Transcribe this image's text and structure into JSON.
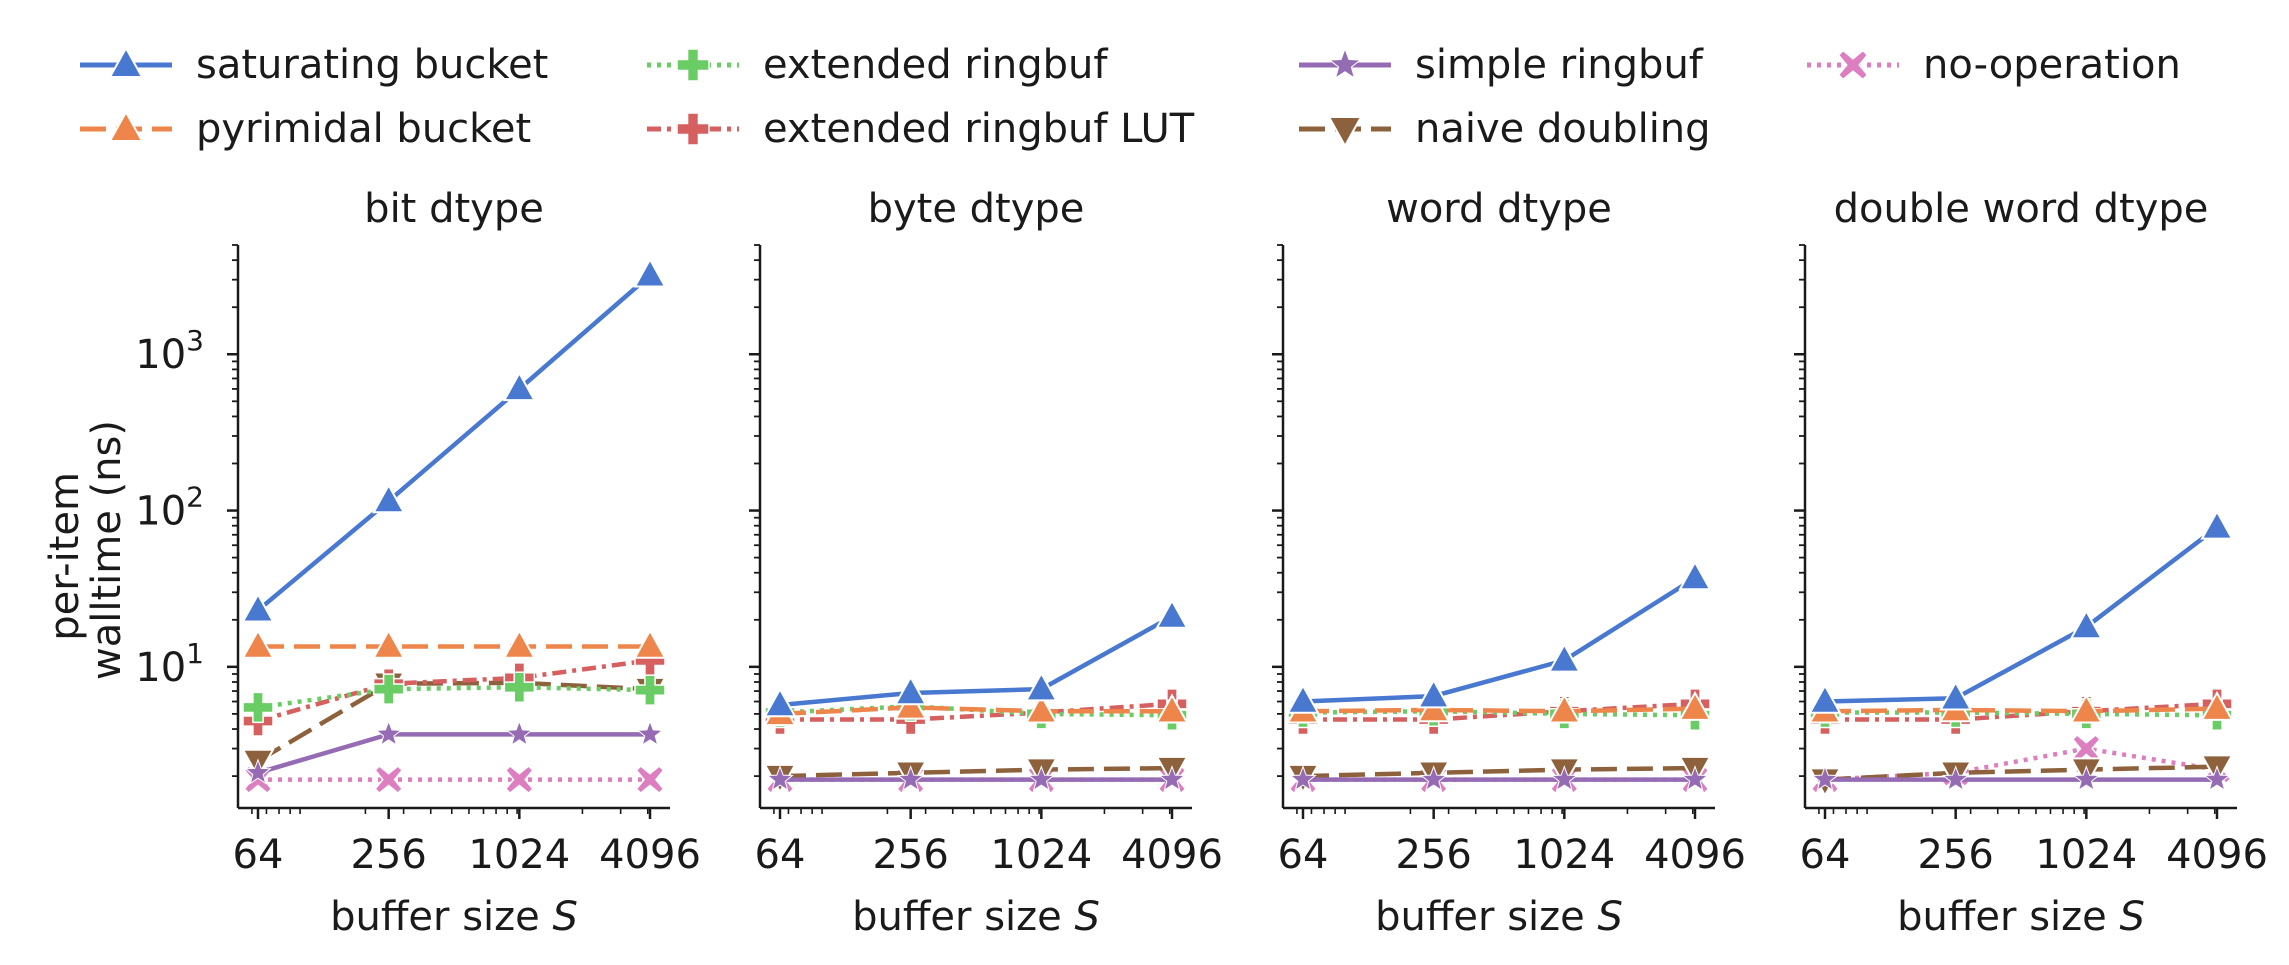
{
  "legend": [
    {
      "label": "saturating bucket",
      "color": "#4878d0",
      "dash": "",
      "marker": "triangle-up"
    },
    {
      "label": "pyrimidal bucket",
      "color": "#ee854a",
      "dash": "26 10",
      "marker": "triangle-up"
    },
    {
      "label": "extended ringbuf",
      "color": "#6acc64",
      "dash": "4 6",
      "marker": "plus"
    },
    {
      "label": "extended ringbuf LUT",
      "color": "#d65f5f",
      "dash": "14 6 4 6",
      "marker": "plus"
    },
    {
      "label": "simple ringbuf",
      "color": "#956cb4",
      "dash": "",
      "marker": "star"
    },
    {
      "label": "naive doubling",
      "color": "#8c613c",
      "dash": "26 10",
      "marker": "triangle-down"
    },
    {
      "label": "no-operation",
      "color": "#dc7ec0",
      "dash": "4 6",
      "marker": "x"
    }
  ],
  "axes": {
    "ylabel_line1": "per-item",
    "ylabel_line2": "walltime (ns)",
    "xlabel_prefix": "buffer size ",
    "xlabel_var": "S",
    "yticks": [
      "10",
      "10",
      "10"
    ],
    "ytick_exponents": [
      "1",
      "2",
      "3"
    ]
  },
  "chart_data": [
    {
      "type": "line",
      "title": "bit dtype",
      "x": [
        64,
        256,
        1024,
        4096
      ],
      "xscale": "log2",
      "yscale": "log10",
      "ylim": [
        1.25,
        5000
      ],
      "xlabel": "buffer size S",
      "ylabel": "per-item walltime (ns)",
      "series": [
        {
          "name": "saturating bucket",
          "values": [
            23,
            115,
            600,
            3200
          ]
        },
        {
          "name": "pyrimidal bucket",
          "values": [
            13.5,
            13.5,
            13.5,
            13.5
          ]
        },
        {
          "name": "extended ringbuf",
          "values": [
            5.5,
            7.2,
            7.4,
            7.1
          ]
        },
        {
          "name": "extended ringbuf LUT",
          "values": [
            4.5,
            7.8,
            8.5,
            11
          ]
        },
        {
          "name": "simple ringbuf",
          "values": [
            2.1,
            3.7,
            3.7,
            3.7
          ]
        },
        {
          "name": "naive doubling",
          "values": [
            2.5,
            7.8,
            7.9,
            7.2
          ]
        },
        {
          "name": "no-operation",
          "values": [
            1.9,
            1.9,
            1.9,
            1.9
          ]
        }
      ]
    },
    {
      "type": "line",
      "title": "byte dtype",
      "x": [
        64,
        256,
        1024,
        4096
      ],
      "xscale": "log2",
      "yscale": "log10",
      "ylim": [
        1.25,
        5000
      ],
      "xlabel": "buffer size S",
      "series": [
        {
          "name": "saturating bucket",
          "values": [
            5.7,
            6.8,
            7.2,
            21
          ]
        },
        {
          "name": "pyrimidal bucket",
          "values": [
            5.0,
            5.5,
            5.2,
            5.2
          ]
        },
        {
          "name": "extended ringbuf",
          "values": [
            5.1,
            5.6,
            5.0,
            4.9
          ]
        },
        {
          "name": "extended ringbuf LUT",
          "values": [
            4.6,
            4.6,
            5.1,
            5.8
          ]
        },
        {
          "name": "simple ringbuf",
          "values": [
            1.9,
            1.9,
            1.9,
            1.9
          ]
        },
        {
          "name": "naive doubling",
          "values": [
            2.0,
            2.1,
            2.2,
            2.25
          ]
        },
        {
          "name": "no-operation",
          "values": [
            1.9,
            1.9,
            1.9,
            1.9
          ]
        }
      ]
    },
    {
      "type": "line",
      "title": "word dtype",
      "x": [
        64,
        256,
        1024,
        4096
      ],
      "xscale": "log2",
      "yscale": "log10",
      "ylim": [
        1.25,
        5000
      ],
      "xlabel": "buffer size S",
      "series": [
        {
          "name": "saturating bucket",
          "values": [
            6.0,
            6.5,
            11,
            37
          ]
        },
        {
          "name": "pyrimidal bucket",
          "values": [
            5.2,
            5.3,
            5.2,
            5.4
          ]
        },
        {
          "name": "extended ringbuf",
          "values": [
            5.1,
            5.2,
            5.0,
            4.9
          ]
        },
        {
          "name": "extended ringbuf LUT",
          "values": [
            4.6,
            4.6,
            5.2,
            5.8
          ]
        },
        {
          "name": "simple ringbuf",
          "values": [
            1.9,
            1.9,
            1.9,
            1.9
          ]
        },
        {
          "name": "naive doubling",
          "values": [
            2.0,
            2.1,
            2.2,
            2.25
          ]
        },
        {
          "name": "no-operation",
          "values": [
            1.9,
            1.9,
            1.9,
            1.9
          ]
        }
      ]
    },
    {
      "type": "line",
      "title": "double word dtype",
      "x": [
        64,
        256,
        1024,
        4096
      ],
      "xscale": "log2",
      "yscale": "log10",
      "ylim": [
        1.25,
        5000
      ],
      "xlabel": "buffer size S",
      "series": [
        {
          "name": "saturating bucket",
          "values": [
            6.0,
            6.3,
            18,
            78
          ]
        },
        {
          "name": "pyrimidal bucket",
          "values": [
            5.2,
            5.3,
            5.2,
            5.4
          ]
        },
        {
          "name": "extended ringbuf",
          "values": [
            5.1,
            5.1,
            5.0,
            4.9
          ]
        },
        {
          "name": "extended ringbuf LUT",
          "values": [
            4.6,
            4.6,
            5.2,
            5.8
          ]
        },
        {
          "name": "simple ringbuf",
          "values": [
            1.9,
            1.9,
            1.9,
            1.9
          ]
        },
        {
          "name": "naive doubling",
          "values": [
            1.9,
            2.1,
            2.2,
            2.3
          ]
        },
        {
          "name": "no-operation",
          "values": [
            1.9,
            2.1,
            3.0,
            2.2
          ]
        }
      ]
    }
  ]
}
